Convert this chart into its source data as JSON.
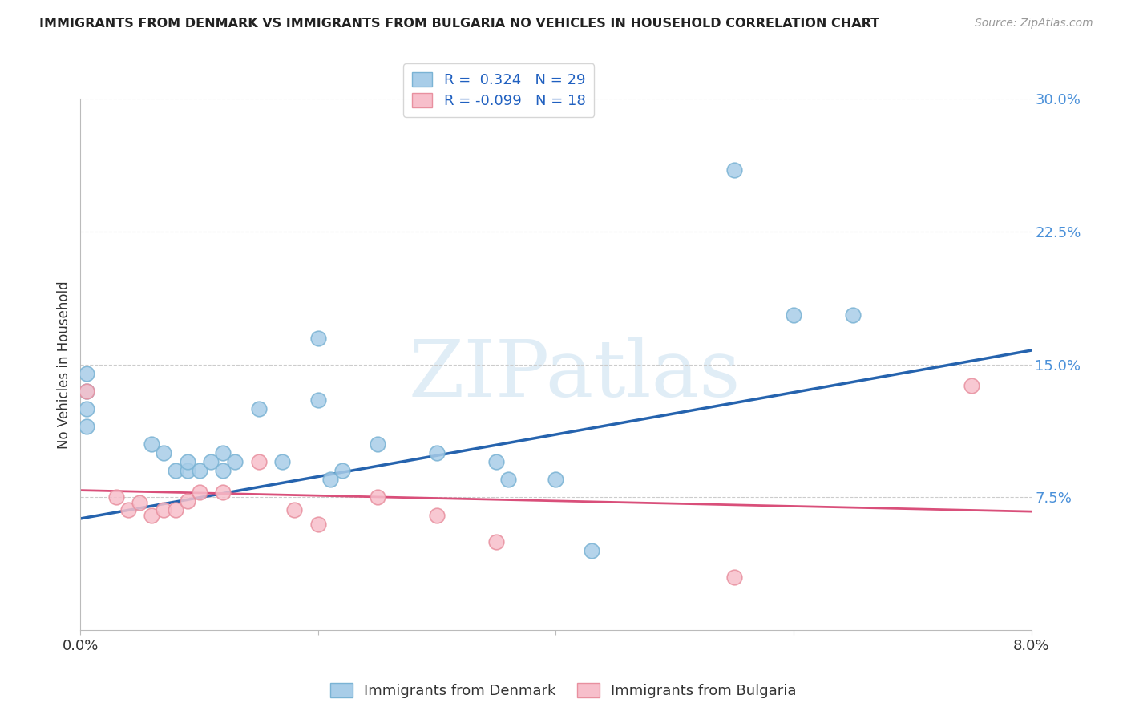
{
  "title": "IMMIGRANTS FROM DENMARK VS IMMIGRANTS FROM BULGARIA NO VEHICLES IN HOUSEHOLD CORRELATION CHART",
  "source": "Source: ZipAtlas.com",
  "ylabel": "No Vehicles in Household",
  "xlim": [
    0.0,
    0.08
  ],
  "ylim": [
    0.0,
    0.3
  ],
  "denmark_color": "#a8cde8",
  "denmark_edge_color": "#7ab3d4",
  "bulgaria_color": "#f7bfcb",
  "bulgaria_edge_color": "#e8909f",
  "line_denmark_color": "#2563ae",
  "line_bulgaria_color": "#d94f7a",
  "R_denmark": 0.324,
  "N_denmark": 29,
  "R_bulgaria": -0.099,
  "N_bulgaria": 18,
  "denmark_x": [
    0.0005,
    0.0005,
    0.0005,
    0.0005,
    0.006,
    0.007,
    0.008,
    0.009,
    0.009,
    0.01,
    0.011,
    0.012,
    0.012,
    0.013,
    0.015,
    0.017,
    0.02,
    0.021,
    0.022,
    0.025,
    0.03,
    0.035,
    0.036,
    0.04,
    0.043,
    0.055,
    0.06,
    0.065,
    0.02
  ],
  "denmark_y": [
    0.145,
    0.135,
    0.125,
    0.115,
    0.105,
    0.1,
    0.09,
    0.09,
    0.095,
    0.09,
    0.095,
    0.09,
    0.1,
    0.095,
    0.125,
    0.095,
    0.13,
    0.085,
    0.09,
    0.105,
    0.1,
    0.095,
    0.085,
    0.085,
    0.045,
    0.26,
    0.178,
    0.178,
    0.165
  ],
  "bulgaria_x": [
    0.0005,
    0.003,
    0.004,
    0.005,
    0.006,
    0.007,
    0.008,
    0.009,
    0.01,
    0.012,
    0.015,
    0.018,
    0.02,
    0.025,
    0.03,
    0.035,
    0.055,
    0.075
  ],
  "bulgaria_y": [
    0.135,
    0.075,
    0.068,
    0.072,
    0.065,
    0.068,
    0.068,
    0.073,
    0.078,
    0.078,
    0.095,
    0.068,
    0.06,
    0.075,
    0.065,
    0.05,
    0.03,
    0.138
  ],
  "dk_line_x0": 0.0,
  "dk_line_y0": 0.063,
  "dk_line_x1": 0.08,
  "dk_line_y1": 0.158,
  "bg_line_x0": 0.0,
  "bg_line_y0": 0.079,
  "bg_line_x1": 0.08,
  "bg_line_y1": 0.067,
  "watermark": "ZIPatlas",
  "background_color": "#ffffff",
  "grid_color": "#cccccc",
  "marker_size": 180
}
